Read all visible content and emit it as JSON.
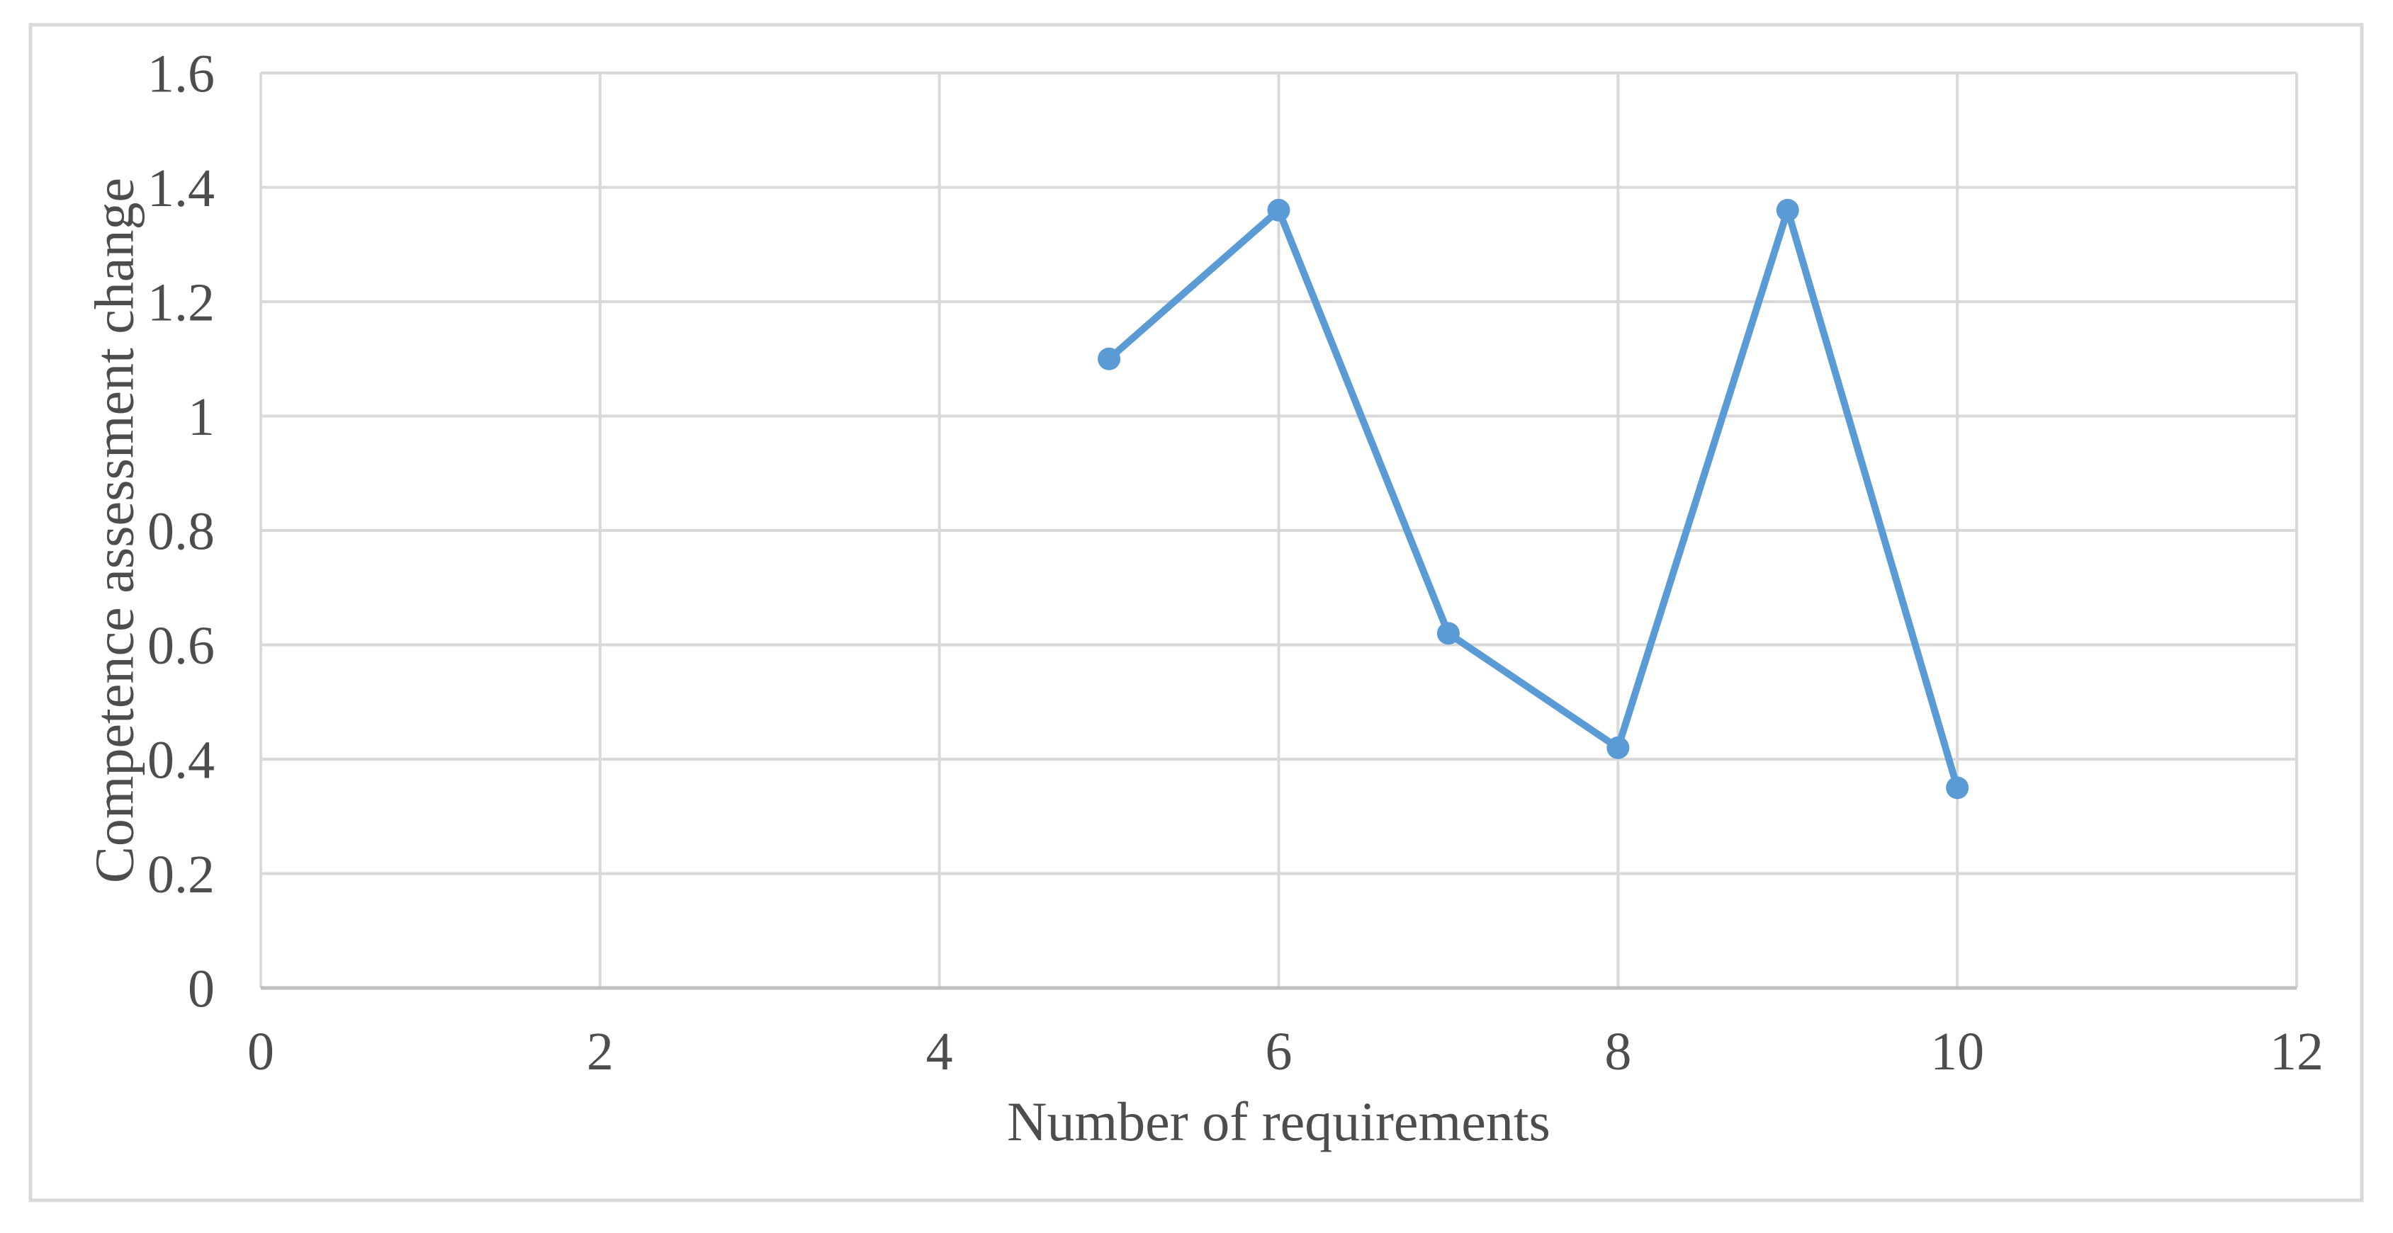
{
  "figure": {
    "background_color": "#ffffff",
    "border_color": "#d9d9d9"
  },
  "chart_data": {
    "type": "line",
    "title": "",
    "xlabel": "Number of requirements",
    "ylabel": "Competence assessment change",
    "x": [
      5,
      6,
      7,
      8,
      9,
      10
    ],
    "y": [
      1.1,
      1.36,
      0.62,
      0.42,
      1.36,
      0.35
    ],
    "series_name": "",
    "xlim": [
      0,
      12
    ],
    "ylim": [
      0,
      1.6
    ],
    "x_ticks": [
      0,
      2,
      4,
      6,
      8,
      10,
      12
    ],
    "y_ticks": [
      0,
      0.2,
      0.4,
      0.6,
      0.8,
      1,
      1.2,
      1.4,
      1.6
    ],
    "x_tick_labels": [
      "0",
      "2",
      "4",
      "6",
      "8",
      "10",
      "12"
    ],
    "y_tick_labels": [
      "0",
      "0.2",
      "0.4",
      "0.6",
      "0.8",
      "1",
      "1.2",
      "1.4",
      "1.6"
    ],
    "grid": true,
    "legend": "none",
    "marker": "circle",
    "line_color": "#5b9bd5",
    "marker_color": "#5b9bd5",
    "gridline_color": "#d9d9d9",
    "axis_line_color": "#bfbfbf",
    "text_color": "#4d4d4d"
  }
}
